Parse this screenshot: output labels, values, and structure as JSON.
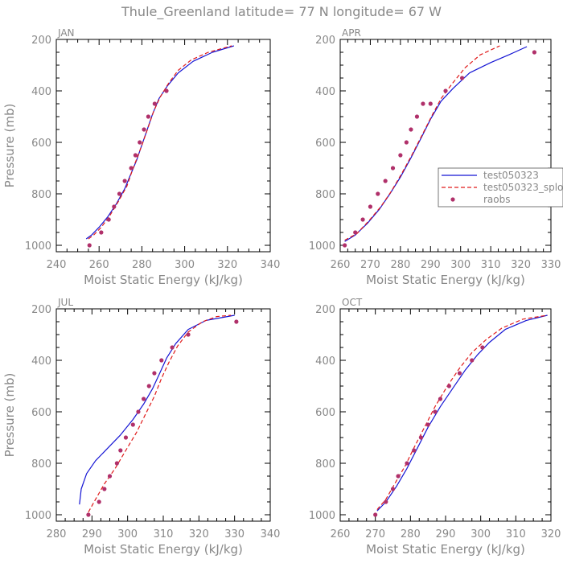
{
  "title": "Thule_Greenland  latitude= 77 N longitude= 67 W",
  "colors": {
    "model": "#1515d4",
    "model2": "#e01a1a",
    "obs": "#b0306a",
    "text": "#888888",
    "axis": "#000000"
  },
  "chart_data": [
    {
      "type": "line",
      "panel_label": "JAN",
      "xlabel": "Moist Static Energy (kJ/kg)",
      "ylabel": "Pressure (mb)",
      "xlim": [
        240,
        340
      ],
      "ylim": [
        200,
        1025
      ],
      "y_inverted": true,
      "xticks": [
        240,
        260,
        280,
        300,
        320,
        340
      ],
      "yticks": [
        200,
        400,
        600,
        800,
        1000
      ],
      "series": [
        {
          "name": "",
          "kind": "model",
          "x": [
            254,
            256.5,
            260,
            264,
            268,
            272,
            275,
            277.5,
            280,
            282.5,
            285,
            288,
            292,
            297,
            304,
            313,
            323
          ],
          "y": [
            975,
            960,
            930,
            890,
            840,
            780,
            720,
            670,
            610,
            550,
            490,
            430,
            380,
            330,
            285,
            250,
            225
          ]
        },
        {
          "name": "",
          "kind": "model2",
          "x": [
            255,
            257.5,
            261,
            265,
            269,
            273,
            275.5,
            278,
            280.5,
            283,
            285.5,
            288.5,
            292.5,
            297,
            303,
            311,
            322
          ],
          "y": [
            975,
            960,
            930,
            885,
            830,
            770,
            710,
            655,
            600,
            540,
            480,
            425,
            370,
            320,
            280,
            250,
            225
          ]
        },
        {
          "name": "",
          "kind": "obs",
          "x": [
            255.5,
            261,
            264.5,
            267,
            269.5,
            272,
            275,
            277,
            279,
            281,
            283,
            286,
            291.5
          ],
          "y": [
            1000,
            950,
            900,
            850,
            800,
            750,
            700,
            650,
            600,
            550,
            500,
            450,
            400
          ]
        }
      ]
    },
    {
      "type": "line",
      "panel_label": "APR",
      "xlabel": "Moist Static Energy (kJ/kg)",
      "ylabel": "",
      "xlim": [
        260,
        330
      ],
      "ylim": [
        200,
        1025
      ],
      "y_inverted": true,
      "xticks": [
        260,
        270,
        280,
        290,
        300,
        310,
        320,
        330
      ],
      "yticks": [
        200,
        400,
        600,
        800,
        1000
      ],
      "legend": {
        "location": "right",
        "entries": [
          "test050323",
          "test050323_splo",
          "raobs"
        ]
      },
      "series": [
        {
          "name": "test050323",
          "kind": "model",
          "x": [
            261.5,
            265,
            269,
            273,
            276.5,
            280,
            283.5,
            287,
            290,
            293.5,
            297.5,
            303,
            310,
            316,
            322
          ],
          "y": [
            985,
            960,
            915,
            860,
            800,
            735,
            660,
            580,
            510,
            440,
            390,
            330,
            290,
            260,
            228
          ]
        },
        {
          "name": "test050323_splo",
          "kind": "model2",
          "x": [
            261.5,
            265.5,
            269.5,
            273.5,
            277,
            280.5,
            284,
            287.5,
            290.5,
            293.5,
            297,
            301.5,
            306.5,
            313
          ],
          "y": [
            980,
            955,
            905,
            850,
            790,
            720,
            645,
            565,
            495,
            430,
            375,
            310,
            260,
            225
          ]
        },
        {
          "name": "raobs",
          "kind": "obs",
          "x": [
            261.5,
            265,
            267.5,
            270,
            272.5,
            275,
            277.5,
            280,
            282,
            283.5,
            285.5,
            287.5,
            290,
            295,
            300.5,
            324.5
          ],
          "y": [
            1000,
            950,
            900,
            850,
            800,
            750,
            700,
            650,
            600,
            550,
            500,
            450,
            450,
            400,
            350,
            250
          ]
        }
      ]
    },
    {
      "type": "line",
      "panel_label": "JUL",
      "xlabel": "Moist Static Energy (kJ/kg)",
      "ylabel": "Pressure (mb)",
      "xlim": [
        280,
        340
      ],
      "ylim": [
        200,
        1025
      ],
      "y_inverted": true,
      "xticks": [
        280,
        290,
        300,
        310,
        320,
        330,
        340
      ],
      "yticks": [
        200,
        400,
        600,
        800,
        1000
      ],
      "series": [
        {
          "name": "",
          "kind": "model",
          "x": [
            286.5,
            287,
            288.5,
            291,
            294.5,
            298,
            301.5,
            304.5,
            307,
            309,
            311,
            313.5,
            317,
            322,
            330
          ],
          "y": [
            960,
            900,
            840,
            790,
            740,
            690,
            630,
            570,
            510,
            450,
            390,
            335,
            280,
            245,
            225
          ]
        },
        {
          "name": "",
          "kind": "model2",
          "x": [
            289,
            291,
            293.5,
            296.5,
            299.5,
            302.5,
            305,
            307.5,
            309.5,
            311.5,
            314,
            317,
            321,
            325,
            329
          ],
          "y": [
            990,
            940,
            880,
            820,
            750,
            680,
            610,
            540,
            470,
            410,
            345,
            290,
            250,
            230,
            225
          ]
        },
        {
          "name": "",
          "kind": "obs",
          "x": [
            289,
            292,
            293.5,
            295,
            297,
            298,
            299.5,
            301.5,
            303,
            304.5,
            306,
            307.5,
            309.5,
            312.5,
            317,
            330.5
          ],
          "y": [
            1000,
            950,
            900,
            850,
            800,
            750,
            700,
            650,
            600,
            550,
            500,
            450,
            400,
            350,
            300,
            250
          ]
        }
      ]
    },
    {
      "type": "line",
      "panel_label": "OCT",
      "xlabel": "Moist Static Energy (kJ/kg)",
      "ylabel": "",
      "xlim": [
        260,
        320
      ],
      "ylim": [
        200,
        1025
      ],
      "y_inverted": true,
      "xticks": [
        260,
        270,
        280,
        290,
        300,
        310,
        320
      ],
      "yticks": [
        200,
        400,
        600,
        800,
        1000
      ],
      "series": [
        {
          "name": "",
          "kind": "model",
          "x": [
            270.5,
            273,
            276,
            279,
            282,
            285,
            288.5,
            292,
            295.5,
            299,
            302.5,
            307,
            313,
            319
          ],
          "y": [
            985,
            950,
            890,
            820,
            740,
            660,
            580,
            510,
            440,
            380,
            330,
            280,
            245,
            225
          ]
        },
        {
          "name": "",
          "kind": "model2",
          "x": [
            270.5,
            273,
            275.5,
            278.5,
            281,
            284,
            287,
            290.5,
            294,
            297.5,
            301.5,
            306,
            312,
            319
          ],
          "y": [
            980,
            940,
            880,
            810,
            740,
            660,
            580,
            500,
            430,
            370,
            320,
            275,
            240,
            225
          ]
        },
        {
          "name": "",
          "kind": "obs",
          "x": [
            270,
            273,
            275,
            276.5,
            279,
            281,
            283,
            285,
            287,
            288.5,
            291,
            294,
            297.5,
            300.5
          ],
          "y": [
            1000,
            950,
            900,
            850,
            800,
            750,
            700,
            650,
            600,
            550,
            500,
            450,
            400,
            350
          ]
        }
      ]
    }
  ]
}
